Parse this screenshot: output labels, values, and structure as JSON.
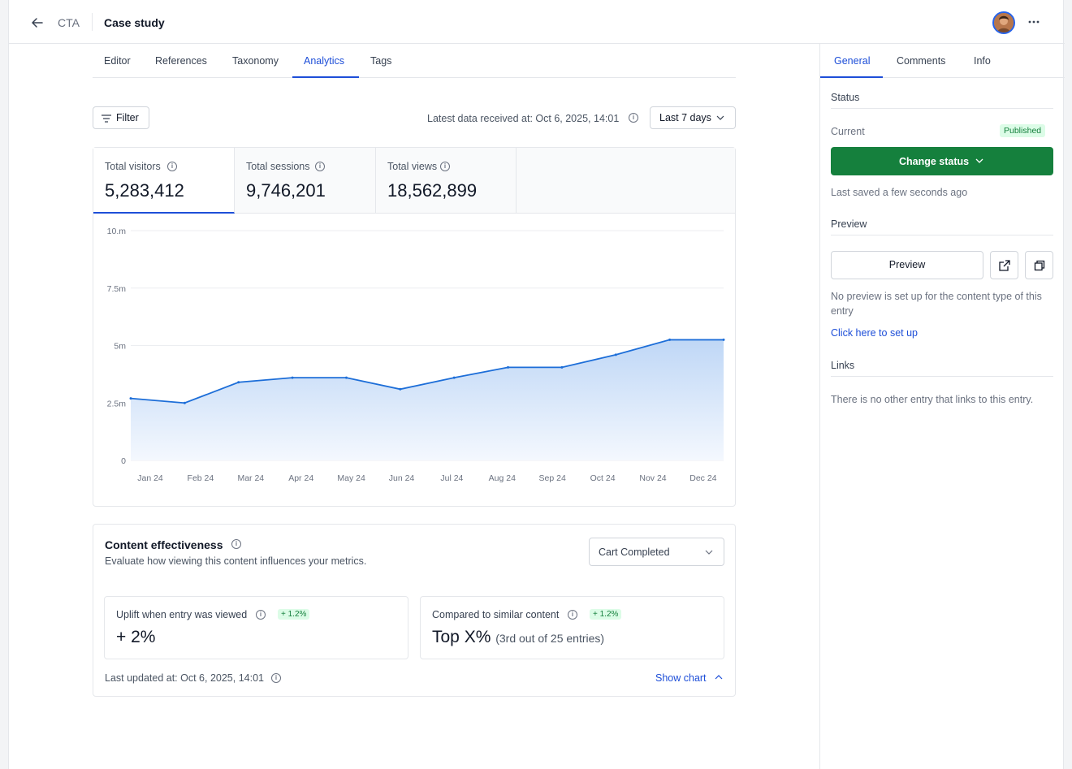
{
  "header": {
    "back_icon": "arrow-left-icon",
    "breadcrumb_parent": "CTA",
    "title": "Case study",
    "more_icon": "more-horizontal-icon"
  },
  "main_tabs": [
    {
      "label": "Editor",
      "active": false
    },
    {
      "label": "References",
      "active": false
    },
    {
      "label": "Taxonomy",
      "active": false
    },
    {
      "label": "Analytics",
      "active": true
    },
    {
      "label": "Tags",
      "active": false
    }
  ],
  "toolbar": {
    "filter_label": "Filter",
    "latest_data": "Latest data received at: Oct 6, 2025, 14:01",
    "range_label": "Last 7 days"
  },
  "kpis": [
    {
      "label": "Total visitors",
      "value": "5,283,412",
      "active": true
    },
    {
      "label": "Total sessions",
      "value": "9,746,201",
      "active": false
    },
    {
      "label": "Total views",
      "value": "18,562,899",
      "active": false
    }
  ],
  "chart_data": {
    "type": "area",
    "categories": [
      "Jan 24",
      "Feb 24",
      "Mar 24",
      "Apr 24",
      "May 24",
      "Jun 24",
      "Jul 24",
      "Aug 24",
      "Sep 24",
      "Oct 24",
      "Nov 24",
      "Dec 24"
    ],
    "series": [
      {
        "values": [
          2.7,
          2.5,
          3.4,
          3.6,
          3.6,
          3.1,
          3.6,
          4.05,
          4.05,
          4.6,
          5.25,
          5.25
        ]
      }
    ],
    "y_ticks": [
      "0",
      "2.5m",
      "5m",
      "7.5m",
      "10.m"
    ],
    "y_tick_values": [
      0,
      2.5,
      5,
      7.5,
      10
    ],
    "ylim": [
      0,
      10
    ],
    "grid": true,
    "colors": {
      "line": "#1d6ed8",
      "fill_top": "#bfd7f6",
      "fill_bottom": "#f4f8fe"
    }
  },
  "effectiveness": {
    "title": "Content effectiveness",
    "subtitle": "Evaluate how viewing this content influences your metrics.",
    "metric_select": "Cart Completed",
    "uplift_label": "Uplift when entry was viewed",
    "uplift_badge": "+ 1.2%",
    "uplift_value": "+ 2%",
    "compare_label": "Compared to similar content",
    "compare_badge": "+ 1.2%",
    "compare_value": "Top X%",
    "compare_note": "(3rd out of 25 entries)",
    "last_updated": "Last updated at: Oct 6, 2025, 14:01",
    "show_chart": "Show chart"
  },
  "sidebar": {
    "tabs": [
      {
        "label": "General",
        "active": true
      },
      {
        "label": "Comments",
        "active": false
      },
      {
        "label": "Info",
        "active": false
      }
    ],
    "status_heading": "Status",
    "current_label": "Current",
    "current_badge": "Published",
    "change_status": "Change status",
    "last_saved": "Last saved a few seconds ago",
    "preview_heading": "Preview",
    "preview_button": "Preview",
    "preview_note": "No preview is set up for the content type of this entry",
    "setup_link": "Click here to set up",
    "links_heading": "Links",
    "links_note": "There is no other entry that links to this entry."
  },
  "colors": {
    "accent": "#1d4ed8",
    "success": "#15803d",
    "success_bg": "#dcfce7"
  }
}
